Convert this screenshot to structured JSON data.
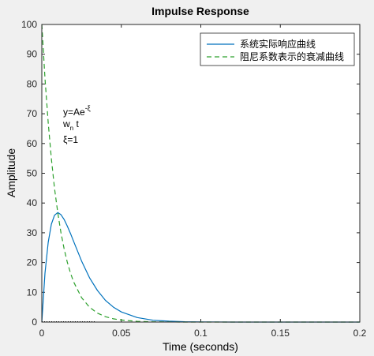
{
  "chart_data": {
    "type": "line",
    "title": "Impulse Response",
    "xlabel": "Time (seconds)",
    "ylabel": "Amplitude",
    "xlim": [
      0,
      0.2
    ],
    "ylim": [
      0,
      100
    ],
    "xticks": [
      0,
      0.05,
      0.1,
      0.15,
      0.2
    ],
    "xtick_labels": [
      "0",
      "0.05",
      "0.1",
      "0.15",
      "0.2"
    ],
    "yticks": [
      0,
      10,
      20,
      30,
      40,
      50,
      60,
      70,
      80,
      90,
      100
    ],
    "ytick_labels": [
      "0",
      "10",
      "20",
      "30",
      "40",
      "50",
      "60",
      "70",
      "80",
      "90",
      "100"
    ],
    "grid": false,
    "legend_position": "top-right",
    "series": [
      {
        "name": "系统实际响应曲线",
        "color": "#0072bd",
        "style": "solid",
        "x": [
          0,
          0.002,
          0.004,
          0.006,
          0.008,
          0.01,
          0.012,
          0.014,
          0.016,
          0.018,
          0.02,
          0.025,
          0.03,
          0.035,
          0.04,
          0.045,
          0.05,
          0.06,
          0.07,
          0.08,
          0.09,
          0.1,
          0.12,
          0.14,
          0.16,
          0.18,
          0.2
        ],
        "values": [
          0,
          16.4,
          26.8,
          32.9,
          35.9,
          36.8,
          36.1,
          34.5,
          32.3,
          29.8,
          27.1,
          20.5,
          14.9,
          10.6,
          7.3,
          5.0,
          3.4,
          1.5,
          0.6,
          0.3,
          0.1,
          0.05,
          0.01,
          0,
          0,
          0,
          0
        ]
      },
      {
        "name": "阻尼系数表示的衰减曲线",
        "color": "#2ca02c",
        "style": "dashed",
        "x": [
          0,
          0.002,
          0.004,
          0.006,
          0.008,
          0.01,
          0.012,
          0.014,
          0.016,
          0.018,
          0.02,
          0.025,
          0.03,
          0.035,
          0.04,
          0.045,
          0.05,
          0.06,
          0.07,
          0.08,
          0.09,
          0.1,
          0.12,
          0.14,
          0.16,
          0.18,
          0.2
        ],
        "values": [
          100,
          81.9,
          67.0,
          54.9,
          44.9,
          36.8,
          30.1,
          24.7,
          20.2,
          16.5,
          13.5,
          8.2,
          5.0,
          3.0,
          1.8,
          1.1,
          0.7,
          0.25,
          0.09,
          0.03,
          0.01,
          0,
          0,
          0,
          0,
          0,
          0
        ]
      }
    ],
    "annotations": {
      "line1_main": "y=Ae",
      "line1_sup": "-ξ",
      "line2_main": "w",
      "line2_sub": "n",
      "line2_rest": " t",
      "line3": "ξ=1"
    }
  }
}
